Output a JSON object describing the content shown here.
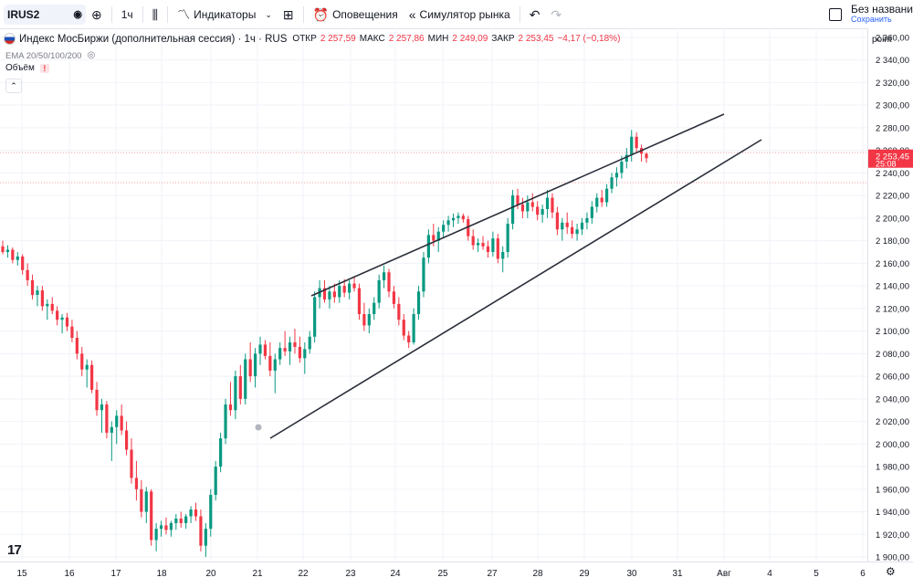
{
  "toolbar": {
    "symbol": "IRUS2",
    "interval": "1ч",
    "indicators_label": "Индикаторы",
    "alerts_label": "Оповещения",
    "replay_label": "Симулятор рынка",
    "save_title": "Без названи",
    "save_sub": "Сохранить"
  },
  "legend": {
    "title": "Индекс МосБиржи (дополнительная сессия) · 1ч · RUS",
    "open_label": "ОТКР",
    "open": "2 257,59",
    "high_label": "МАКС",
    "high": "2 257,86",
    "low_label": "МИН",
    "low": "2 249,09",
    "close_label": "ЗАКР",
    "close": "2 253,45",
    "change": "−4,17 (−0,18%)",
    "ema": "EMA 20/50/100/200",
    "volume": "Объём"
  },
  "price_scale": {
    "unit": "point",
    "ticks": [
      "2 360,00",
      "2 340,00",
      "2 320,00",
      "2 300,00",
      "2 280,00",
      "2 260,00",
      "2 240,00",
      "2 220,00",
      "2 200,00",
      "2 180,00",
      "2 160,00",
      "2 140,00",
      "2 120,00",
      "2 100,00",
      "2 080,00",
      "2 060,00",
      "2 040,00",
      "2 020,00",
      "2 000,00",
      "1 980,00",
      "1 960,00",
      "1 940,00",
      "1 920,00",
      "1 900,00"
    ],
    "current_price": "2 253,45",
    "countdown": "25:08"
  },
  "time_axis": {
    "labels": [
      "15",
      "16",
      "17",
      "18",
      "20",
      "21",
      "22",
      "23",
      "24",
      "25",
      "27",
      "28",
      "29",
      "30",
      "31",
      "Авг",
      "4",
      "5",
      "6"
    ]
  },
  "colors": {
    "up": "#089981",
    "down": "#f23645",
    "grid": "#f0f3fa",
    "accent": "#2962ff"
  },
  "chart_data": {
    "type": "candlestick",
    "ylim": [
      1896,
      2368
    ],
    "candles": [
      [
        2175,
        2180,
        2168,
        2170
      ],
      [
        2170,
        2176,
        2165,
        2172
      ],
      [
        2172,
        2174,
        2160,
        2163
      ],
      [
        2163,
        2170,
        2158,
        2166
      ],
      [
        2166,
        2168,
        2150,
        2154
      ],
      [
        2154,
        2160,
        2140,
        2145
      ],
      [
        2145,
        2150,
        2128,
        2132
      ],
      [
        2132,
        2140,
        2122,
        2136
      ],
      [
        2136,
        2140,
        2118,
        2122
      ],
      [
        2122,
        2128,
        2110,
        2124
      ],
      [
        2124,
        2130,
        2115,
        2118
      ],
      [
        2118,
        2122,
        2105,
        2110
      ],
      [
        2110,
        2115,
        2098,
        2112
      ],
      [
        2112,
        2116,
        2100,
        2104
      ],
      [
        2104,
        2110,
        2090,
        2094
      ],
      [
        2094,
        2100,
        2075,
        2080
      ],
      [
        2080,
        2086,
        2060,
        2066
      ],
      [
        2066,
        2075,
        2050,
        2070
      ],
      [
        2070,
        2074,
        2045,
        2048
      ],
      [
        2048,
        2055,
        2025,
        2030
      ],
      [
        2030,
        2040,
        2010,
        2035
      ],
      [
        2035,
        2038,
        2005,
        2010
      ],
      [
        2010,
        2020,
        1985,
        2015
      ],
      [
        2015,
        2030,
        2000,
        2025
      ],
      [
        2025,
        2035,
        2008,
        2012
      ],
      [
        2012,
        2020,
        1990,
        1995
      ],
      [
        1995,
        2005,
        1965,
        1970
      ],
      [
        1970,
        1985,
        1950,
        1960
      ],
      [
        1960,
        1968,
        1935,
        1940
      ],
      [
        1940,
        1962,
        1930,
        1958
      ],
      [
        1958,
        1960,
        1910,
        1915
      ],
      [
        1915,
        1930,
        1905,
        1925
      ],
      [
        1925,
        1932,
        1918,
        1928
      ],
      [
        1928,
        1935,
        1920,
        1924
      ],
      [
        1924,
        1932,
        1918,
        1930
      ],
      [
        1930,
        1938,
        1924,
        1934
      ],
      [
        1934,
        1940,
        1926,
        1930
      ],
      [
        1930,
        1938,
        1925,
        1936
      ],
      [
        1936,
        1945,
        1930,
        1942
      ],
      [
        1942,
        1948,
        1932,
        1936
      ],
      [
        1936,
        1942,
        1905,
        1910
      ],
      [
        1910,
        1930,
        1900,
        1925
      ],
      [
        1925,
        1960,
        1918,
        1955
      ],
      [
        1955,
        1985,
        1950,
        1980
      ],
      [
        1980,
        2010,
        1975,
        2005
      ],
      [
        2005,
        2040,
        2000,
        2035
      ],
      [
        2035,
        2055,
        2025,
        2030
      ],
      [
        2030,
        2065,
        2022,
        2060
      ],
      [
        2060,
        2070,
        2035,
        2040
      ],
      [
        2040,
        2080,
        2035,
        2075
      ],
      [
        2075,
        2090,
        2055,
        2060
      ],
      [
        2060,
        2085,
        2050,
        2080
      ],
      [
        2080,
        2095,
        2070,
        2088
      ],
      [
        2088,
        2092,
        2075,
        2078
      ],
      [
        2078,
        2090,
        2060,
        2065
      ],
      [
        2065,
        2080,
        2045,
        2075
      ],
      [
        2075,
        2090,
        2070,
        2085
      ],
      [
        2085,
        2100,
        2078,
        2082
      ],
      [
        2082,
        2095,
        2070,
        2090
      ],
      [
        2090,
        2102,
        2080,
        2086
      ],
      [
        2086,
        2095,
        2072,
        2076
      ],
      [
        2076,
        2090,
        2062,
        2084
      ],
      [
        2084,
        2100,
        2080,
        2095
      ],
      [
        2095,
        2135,
        2090,
        2130
      ],
      [
        2130,
        2145,
        2120,
        2138
      ],
      [
        2138,
        2145,
        2125,
        2128
      ],
      [
        2128,
        2140,
        2120,
        2135
      ],
      [
        2135,
        2142,
        2125,
        2130
      ],
      [
        2130,
        2145,
        2125,
        2140
      ],
      [
        2140,
        2146,
        2130,
        2134
      ],
      [
        2134,
        2145,
        2128,
        2142
      ],
      [
        2142,
        2148,
        2135,
        2138
      ],
      [
        2138,
        2142,
        2110,
        2115
      ],
      [
        2115,
        2125,
        2100,
        2105
      ],
      [
        2105,
        2120,
        2098,
        2115
      ],
      [
        2115,
        2130,
        2110,
        2125
      ],
      [
        2125,
        2150,
        2120,
        2145
      ],
      [
        2145,
        2158,
        2138,
        2152
      ],
      [
        2152,
        2155,
        2130,
        2135
      ],
      [
        2135,
        2140,
        2120,
        2124
      ],
      [
        2124,
        2130,
        2105,
        2110
      ],
      [
        2110,
        2115,
        2092,
        2096
      ],
      [
        2096,
        2100,
        2085,
        2090
      ],
      [
        2090,
        2120,
        2088,
        2115
      ],
      [
        2115,
        2140,
        2110,
        2135
      ],
      [
        2135,
        2170,
        2130,
        2165
      ],
      [
        2165,
        2190,
        2160,
        2185
      ],
      [
        2185,
        2195,
        2175,
        2180
      ],
      [
        2180,
        2192,
        2170,
        2188
      ],
      [
        2188,
        2198,
        2182,
        2194
      ],
      [
        2194,
        2202,
        2188,
        2198
      ],
      [
        2198,
        2204,
        2192,
        2200
      ],
      [
        2200,
        2205,
        2195,
        2202
      ],
      [
        2202,
        2204,
        2196,
        2199
      ],
      [
        2199,
        2202,
        2180,
        2184
      ],
      [
        2184,
        2190,
        2172,
        2176
      ],
      [
        2176,
        2182,
        2170,
        2178
      ],
      [
        2178,
        2184,
        2172,
        2175
      ],
      [
        2175,
        2180,
        2165,
        2170
      ],
      [
        2170,
        2188,
        2166,
        2182
      ],
      [
        2182,
        2186,
        2160,
        2164
      ],
      [
        2164,
        2175,
        2152,
        2170
      ],
      [
        2170,
        2200,
        2165,
        2195
      ],
      [
        2195,
        2225,
        2190,
        2220
      ],
      [
        2220,
        2226,
        2208,
        2212
      ],
      [
        2212,
        2218,
        2200,
        2206
      ],
      [
        2206,
        2220,
        2200,
        2214
      ],
      [
        2214,
        2222,
        2206,
        2210
      ],
      [
        2210,
        2215,
        2198,
        2203
      ],
      [
        2203,
        2212,
        2196,
        2208
      ],
      [
        2208,
        2225,
        2200,
        2218
      ],
      [
        2218,
        2222,
        2200,
        2205
      ],
      [
        2205,
        2210,
        2185,
        2190
      ],
      [
        2190,
        2200,
        2180,
        2196
      ],
      [
        2196,
        2205,
        2186,
        2192
      ],
      [
        2192,
        2198,
        2182,
        2186
      ],
      [
        2186,
        2195,
        2180,
        2190
      ],
      [
        2190,
        2200,
        2185,
        2196
      ],
      [
        2196,
        2205,
        2190,
        2200
      ],
      [
        2200,
        2215,
        2195,
        2210
      ],
      [
        2210,
        2222,
        2205,
        2218
      ],
      [
        2218,
        2225,
        2210,
        2214
      ],
      [
        2214,
        2230,
        2210,
        2226
      ],
      [
        2226,
        2240,
        2222,
        2236
      ],
      [
        2236,
        2245,
        2228,
        2240
      ],
      [
        2240,
        2255,
        2235,
        2250
      ],
      [
        2250,
        2262,
        2244,
        2256
      ],
      [
        2256,
        2278,
        2250,
        2272
      ],
      [
        2272,
        2276,
        2258,
        2262
      ],
      [
        2262,
        2265,
        2250,
        2257
      ],
      [
        2257,
        2258,
        2249,
        2253
      ]
    ]
  }
}
